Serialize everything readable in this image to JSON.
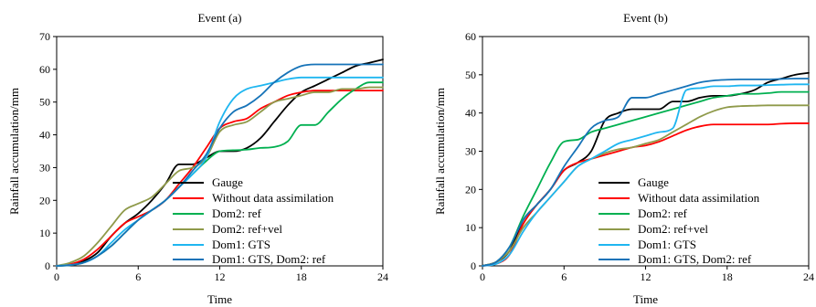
{
  "colors": {
    "Gauge": "#000000",
    "Without data assimilation": "#ff0000",
    "Dom2: ref": "#00b050",
    "Dom2: ref+vel": "#8f9a4a",
    "Dom1: GTS": "#1fb6f0",
    "Dom1: GTS, Dom2: ref": "#1673b8"
  },
  "chart_data": [
    {
      "type": "line",
      "title": "Event (a)",
      "xlabel": "Time",
      "ylabel": "Rainfall accumulation/mm",
      "xlim": [
        0,
        24
      ],
      "ylim": [
        0,
        70
      ],
      "xticks": [
        0,
        6,
        12,
        18,
        24
      ],
      "yticks": [
        0,
        10,
        20,
        30,
        40,
        50,
        60,
        70
      ],
      "legend_position": "bottom-right",
      "series": [
        {
          "name": "Gauge",
          "x": [
            0,
            1,
            2,
            3,
            4,
            5,
            6,
            7,
            8,
            9,
            10,
            11,
            12,
            13,
            14,
            15,
            16,
            17,
            18,
            19,
            20,
            21,
            22,
            23,
            24
          ],
          "y": [
            0,
            0.3,
            1.5,
            4,
            9,
            13,
            16,
            20,
            25,
            31,
            31,
            33,
            35,
            35,
            36,
            39,
            44,
            49,
            53,
            55,
            57,
            59,
            61,
            62,
            63
          ]
        },
        {
          "name": "Without data assimilation",
          "x": [
            0,
            1,
            2,
            3,
            4,
            5,
            6,
            7,
            8,
            9,
            10,
            11,
            12,
            13,
            14,
            15,
            16,
            17,
            18,
            19,
            20,
            21,
            22,
            23,
            24
          ],
          "y": [
            0,
            0.5,
            2,
            5,
            9,
            13,
            15,
            17,
            20,
            25,
            30,
            36,
            42,
            44,
            45,
            48,
            50,
            52,
            53,
            53.5,
            53.5,
            53.5,
            53.5,
            53.5,
            53.5
          ]
        },
        {
          "name": "Dom2: ref",
          "x": [
            0,
            1,
            2,
            3,
            4,
            5,
            6,
            7,
            8,
            9,
            10,
            11,
            12,
            13,
            14,
            15,
            16,
            17,
            18,
            19,
            20,
            21,
            22,
            23,
            24
          ],
          "y": [
            0,
            0.2,
            1,
            3,
            6,
            10,
            14,
            17,
            20,
            24,
            28,
            32,
            35,
            35.3,
            35.5,
            36,
            36.3,
            38,
            43,
            43,
            47,
            51,
            54,
            56,
            56
          ]
        },
        {
          "name": "Dom2: ref+vel",
          "x": [
            0,
            1,
            2,
            3,
            4,
            5,
            6,
            7,
            8,
            9,
            10,
            11,
            12,
            13,
            14,
            15,
            16,
            17,
            18,
            19,
            20,
            21,
            22,
            23,
            24
          ],
          "y": [
            0,
            1,
            3,
            7,
            12,
            17,
            19,
            21,
            25,
            29,
            30,
            33,
            41,
            43,
            44,
            47,
            50,
            51,
            52,
            53,
            53,
            54,
            54,
            54.5,
            54.5
          ]
        },
        {
          "name": "Dom1: GTS",
          "x": [
            0,
            1,
            2,
            3,
            4,
            5,
            6,
            7,
            8,
            9,
            10,
            11,
            12,
            13,
            14,
            15,
            16,
            17,
            18,
            19,
            20,
            21,
            22,
            23,
            24
          ],
          "y": [
            0,
            0.3,
            1,
            3,
            7,
            11,
            14,
            17,
            20,
            24,
            28,
            33,
            44,
            51,
            54,
            55,
            56,
            57,
            57.5,
            57.5,
            57.5,
            57.5,
            57.5,
            57.5,
            57.5
          ]
        },
        {
          "name": "Dom1: GTS, Dom2: ref",
          "x": [
            0,
            1,
            2,
            3,
            4,
            5,
            6,
            7,
            8,
            9,
            10,
            11,
            12,
            13,
            14,
            15,
            16,
            17,
            18,
            19,
            20,
            21,
            22,
            23,
            24
          ],
          "y": [
            0,
            0.2,
            1,
            3,
            6,
            10,
            14,
            17,
            20,
            24,
            29,
            34,
            42,
            47,
            49,
            52,
            56,
            59,
            61,
            61.5,
            61.5,
            61.5,
            61.5,
            61.5,
            61.5
          ]
        }
      ]
    },
    {
      "type": "line",
      "title": "Event (b)",
      "xlabel": "Time",
      "ylabel": "Rainfall accumulation/mm",
      "xlim": [
        0,
        24
      ],
      "ylim": [
        0,
        60
      ],
      "xticks": [
        0,
        6,
        12,
        18,
        24
      ],
      "yticks": [
        0,
        10,
        20,
        30,
        40,
        50,
        60
      ],
      "legend_position": "bottom-right",
      "series": [
        {
          "name": "Gauge",
          "x": [
            0,
            1,
            2,
            3,
            4,
            5,
            6,
            7,
            8,
            9,
            10,
            11,
            12,
            13,
            14,
            15,
            16,
            17,
            18,
            19,
            20,
            21,
            22,
            23,
            24
          ],
          "y": [
            0,
            1,
            4,
            12,
            16,
            20,
            25,
            27,
            30,
            38,
            40,
            41,
            41,
            41,
            43,
            43,
            44,
            44.5,
            44.5,
            45,
            46,
            48,
            49,
            50,
            50.5
          ]
        },
        {
          "name": "Without data assimilation",
          "x": [
            0,
            1,
            2,
            3,
            4,
            5,
            6,
            7,
            8,
            9,
            10,
            11,
            12,
            13,
            14,
            15,
            16,
            17,
            18,
            19,
            20,
            21,
            22,
            23,
            24
          ],
          "y": [
            0,
            0.5,
            3,
            11,
            16,
            20,
            25,
            27,
            28,
            29,
            30,
            31,
            31.5,
            32.5,
            34,
            35.5,
            36.5,
            37,
            37,
            37,
            37,
            37,
            37.2,
            37.3,
            37.3
          ]
        },
        {
          "name": "Dom2: ref",
          "x": [
            0,
            1,
            2,
            3,
            4,
            5,
            6,
            7,
            8,
            9,
            10,
            11,
            12,
            13,
            14,
            15,
            16,
            17,
            18,
            19,
            20,
            21,
            22,
            23,
            24
          ],
          "y": [
            0,
            1,
            5,
            13,
            20,
            27,
            32.5,
            33,
            35,
            36,
            37,
            38,
            39,
            40,
            41,
            42,
            43,
            44,
            44.5,
            45,
            45,
            45.2,
            45.5,
            45.5,
            45.5
          ]
        },
        {
          "name": "Dom2: ref+vel",
          "x": [
            0,
            1,
            2,
            3,
            4,
            5,
            6,
            7,
            8,
            9,
            10,
            11,
            12,
            13,
            14,
            15,
            16,
            17,
            18,
            19,
            20,
            21,
            22,
            23,
            24
          ],
          "y": [
            0,
            1,
            4,
            10,
            14,
            18,
            22,
            26,
            28,
            29.5,
            30.5,
            31,
            32,
            33,
            35,
            37,
            39,
            40.5,
            41.5,
            41.8,
            41.9,
            42,
            42,
            42,
            42
          ]
        },
        {
          "name": "Dom1: GTS",
          "x": [
            0,
            1,
            2,
            3,
            4,
            5,
            6,
            7,
            8,
            9,
            10,
            11,
            12,
            13,
            14,
            15,
            16,
            17,
            18,
            19,
            20,
            21,
            22,
            23,
            24
          ],
          "y": [
            0,
            0.5,
            3,
            9,
            14,
            18,
            22,
            26,
            28,
            30,
            32,
            33,
            34,
            35,
            36,
            46,
            46.5,
            47,
            47,
            47.2,
            47.2,
            47.3,
            47.4,
            47.5,
            47.5
          ]
        },
        {
          "name": "Dom1: GTS, Dom2: ref",
          "x": [
            0,
            1,
            2,
            3,
            4,
            5,
            6,
            7,
            8,
            9,
            10,
            11,
            12,
            13,
            14,
            15,
            16,
            17,
            18,
            19,
            20,
            21,
            22,
            23,
            24
          ],
          "y": [
            0,
            1,
            5,
            12,
            16,
            20,
            26,
            31,
            36,
            38,
            39,
            44,
            44,
            45,
            46,
            47,
            48,
            48.5,
            48.7,
            48.8,
            48.8,
            48.8,
            48.9,
            49,
            49
          ]
        }
      ]
    }
  ]
}
